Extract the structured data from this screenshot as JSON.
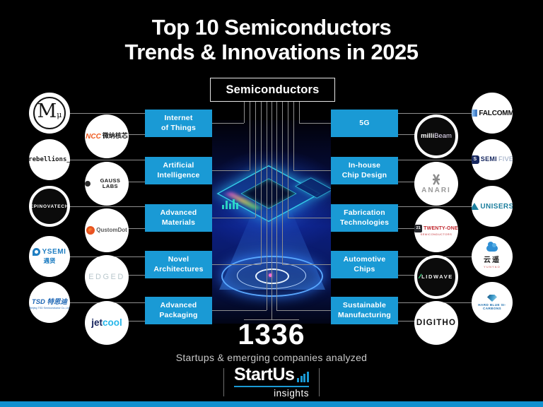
{
  "title": {
    "line1": "Top 10 Semiconductors",
    "line2": "Trends & Innovations in 2025"
  },
  "root": {
    "label": "Semiconductors"
  },
  "trends": {
    "left": [
      "Internet\nof Things",
      "Artificial\nIntelligence",
      "Advanced\nMaterials",
      "Novel\nArchitectures",
      "Advanced\nPackaging"
    ],
    "right": [
      "5G",
      "In-house\nChip Design",
      "Fabrication\nTechnologies",
      "Automotive\nChips",
      "Sustainable\nManufacturing"
    ]
  },
  "logos": {
    "left_outer": [
      {
        "main": "M",
        "sub": "μ"
      },
      {
        "text": "rebellions_"
      },
      {
        "text": "EPINOVATECH"
      },
      {
        "text": "YSEMI",
        "sub": "遇贤"
      },
      {
        "text": "TSD 特思迪",
        "sub": "Beijing TSD Semiconductor Co.,Ltd"
      }
    ],
    "left_inner": [
      {
        "text": "NCC",
        "sub": "微纳核芯"
      },
      {
        "text": "GAUSS LABS"
      },
      {
        "text": "QustomDot"
      },
      {
        "text": "EDGED"
      },
      {
        "part1": "jet",
        "part2": "cool"
      }
    ],
    "right_inner": [
      {
        "part1": "milli",
        "part2": "Beam"
      },
      {
        "text": "ANARI"
      },
      {
        "badge": "21",
        "text": "TWENTY-ONE",
        "sub": "SEMICONDUCTORS"
      },
      {
        "icon": "∕∕",
        "text": "LIDWAVE"
      },
      {
        "text": "DIGITHO"
      }
    ],
    "right_outer": [
      {
        "text": "FALCOMM"
      },
      {
        "icon": "S",
        "part1": "SEMI",
        "part2": "FIVE"
      },
      {
        "text": "UNISERS"
      },
      {
        "text": "云遥",
        "sub": "YUNYAO"
      },
      {
        "text": "HARD BLUE SI-CARBONS"
      }
    ]
  },
  "stats": {
    "count": "1336",
    "caption": "Startups & emerging companies analyzed"
  },
  "brand": {
    "name": "StartUs",
    "sub": "insights"
  },
  "colors": {
    "accent_blue": "#1A9AD5",
    "bottom_bar": "#1090CF"
  }
}
